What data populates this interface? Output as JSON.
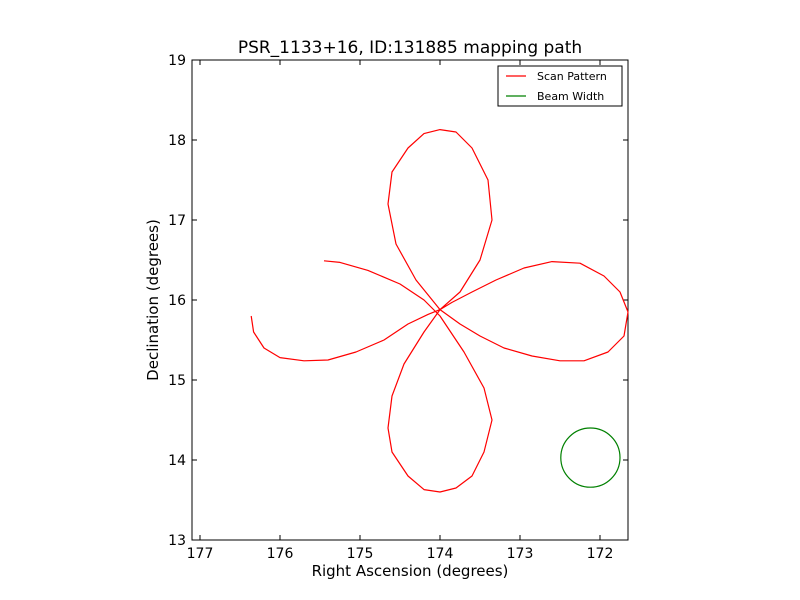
{
  "chart_data": {
    "type": "line",
    "title": "PSR_1133+16, ID:131885 mapping path",
    "xlabel": "Right Ascension (degrees)",
    "ylabel": "Declination (degrees)",
    "xlim": [
      177.1,
      171.65
    ],
    "ylim": [
      13,
      19
    ],
    "x_inverted": true,
    "xticks": [
      177,
      176,
      175,
      174,
      173,
      172
    ],
    "yticks": [
      13,
      14,
      15,
      16,
      17,
      18,
      19
    ],
    "grid": false,
    "legend": {
      "location": "top-right"
    },
    "series": [
      {
        "name": "Scan Pattern",
        "color": "#ff0000",
        "x": [
          176.36,
          176.33,
          176.2,
          176.0,
          175.7,
          175.4,
          175.05,
          174.7,
          174.4,
          174.15,
          174.0,
          173.75,
          173.5,
          173.35,
          173.4,
          173.6,
          173.8,
          174.0,
          174.2,
          174.4,
          174.6,
          174.65,
          174.55,
          174.3,
          174.0,
          173.75,
          173.5,
          173.2,
          172.85,
          172.5,
          172.2,
          171.9,
          171.7,
          171.65,
          171.75,
          171.95,
          172.25,
          172.6,
          172.95,
          173.3,
          173.6,
          173.85,
          174.0,
          174.2,
          174.45,
          174.6,
          174.65,
          174.6,
          174.4,
          174.2,
          174.0,
          173.8,
          173.6,
          173.45,
          173.35,
          173.45,
          173.7,
          174.0,
          174.2,
          174.5,
          174.9,
          175.25,
          175.45
        ],
        "y": [
          15.8,
          15.6,
          15.4,
          15.28,
          15.24,
          15.25,
          15.35,
          15.5,
          15.7,
          15.82,
          15.88,
          16.1,
          16.5,
          17.0,
          17.5,
          17.9,
          18.1,
          18.13,
          18.08,
          17.9,
          17.6,
          17.2,
          16.7,
          16.25,
          15.88,
          15.7,
          15.55,
          15.4,
          15.3,
          15.24,
          15.24,
          15.35,
          15.55,
          15.85,
          16.1,
          16.3,
          16.46,
          16.48,
          16.4,
          16.25,
          16.1,
          15.97,
          15.88,
          15.6,
          15.2,
          14.8,
          14.4,
          14.1,
          13.8,
          13.63,
          13.6,
          13.65,
          13.8,
          14.1,
          14.5,
          14.9,
          15.35,
          15.8,
          16.0,
          16.2,
          16.37,
          16.47,
          16.49
        ]
      },
      {
        "name": "Beam Width",
        "color": "#008000",
        "center": [
          172.12,
          14.03
        ],
        "radius": 0.37
      }
    ]
  }
}
